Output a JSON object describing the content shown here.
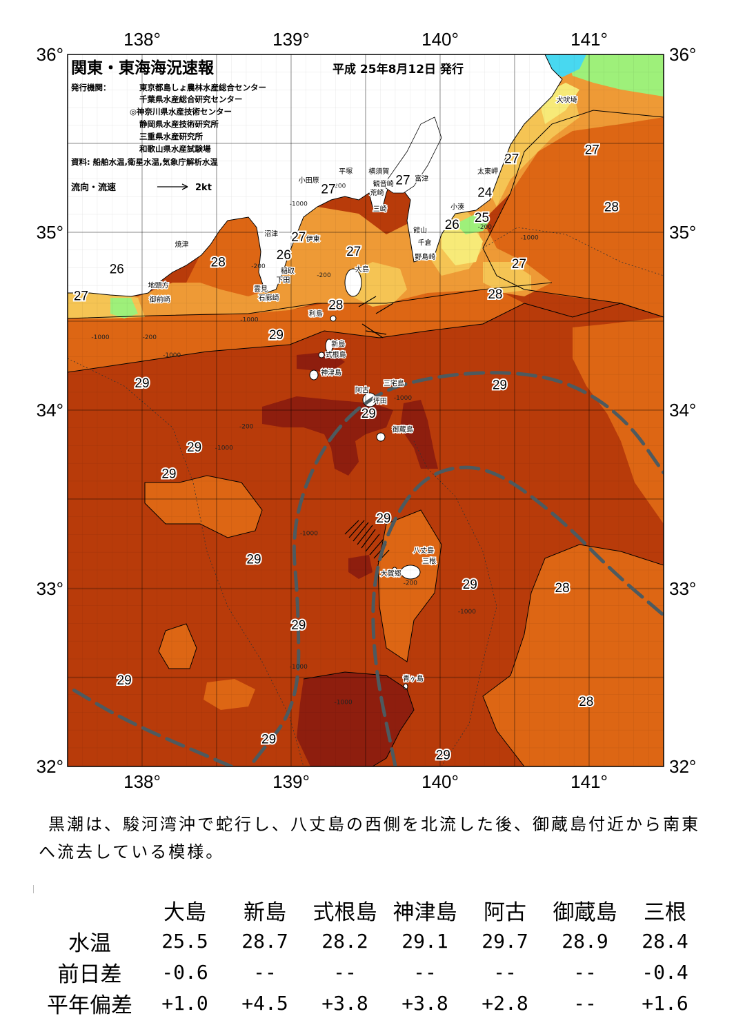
{
  "header": {
    "title": "関東・東海海況速報",
    "date": "平成 25年8月12日 発行",
    "publisher_label": "発行機関：",
    "publishers": [
      "東京都島しょ農林水産総合センター",
      "千葉県水産総合研究センター",
      "◎神奈川県水産技術センター",
      "静岡県水産技術研究所",
      "三重県水産研究所",
      "和歌山県水産試験場"
    ],
    "source": "資料: 船舶水温,衛星水温,気象庁解析水温",
    "legend_current": "流向・流速",
    "legend_speed": "2kt"
  },
  "axes": {
    "longitude_labels": [
      "138°",
      "139°",
      "140°",
      "141°"
    ],
    "latitude_labels": [
      "36°",
      "35°",
      "34°",
      "33°",
      "32°"
    ],
    "lon_range": [
      137.5,
      141.5
    ],
    "lat_range": [
      32,
      36
    ]
  },
  "isotherm_labels": [
    {
      "text": "26",
      "lon": 137.83,
      "lat": 34.77
    },
    {
      "text": "27",
      "lon": 137.59,
      "lat": 34.62
    },
    {
      "text": "28",
      "lon": 138.51,
      "lat": 34.81
    },
    {
      "text": "26",
      "lon": 138.95,
      "lat": 34.85
    },
    {
      "text": "27",
      "lon": 139.05,
      "lat": 34.95
    },
    {
      "text": "27",
      "lon": 139.25,
      "lat": 35.22
    },
    {
      "text": "27",
      "lon": 139.42,
      "lat": 34.87
    },
    {
      "text": "27",
      "lon": 139.75,
      "lat": 35.27
    },
    {
      "text": "28",
      "lon": 139.3,
      "lat": 34.57
    },
    {
      "text": "29",
      "lon": 138.9,
      "lat": 34.4
    },
    {
      "text": "24",
      "lon": 140.3,
      "lat": 35.2
    },
    {
      "text": "26",
      "lon": 140.08,
      "lat": 35.02
    },
    {
      "text": "25",
      "lon": 140.28,
      "lat": 35.06
    },
    {
      "text": "27",
      "lon": 140.48,
      "lat": 35.39
    },
    {
      "text": "27",
      "lon": 141.02,
      "lat": 35.44
    },
    {
      "text": "28",
      "lon": 141.15,
      "lat": 35.12
    },
    {
      "text": "27",
      "lon": 140.53,
      "lat": 34.8
    },
    {
      "text": "28",
      "lon": 140.37,
      "lat": 34.63
    },
    {
      "text": "29",
      "lon": 140.4,
      "lat": 34.12
    },
    {
      "text": "29",
      "lon": 138.0,
      "lat": 34.13
    },
    {
      "text": "29",
      "lon": 138.35,
      "lat": 33.77
    },
    {
      "text": "29",
      "lon": 138.18,
      "lat": 33.62
    },
    {
      "text": "29",
      "lon": 139.52,
      "lat": 33.96
    },
    {
      "text": "29",
      "lon": 139.62,
      "lat": 33.37
    },
    {
      "text": "29",
      "lon": 138.75,
      "lat": 33.14
    },
    {
      "text": "29",
      "lon": 140.2,
      "lat": 33.0
    },
    {
      "text": "28",
      "lon": 140.82,
      "lat": 32.98
    },
    {
      "text": "29",
      "lon": 139.05,
      "lat": 32.77
    },
    {
      "text": "29",
      "lon": 137.88,
      "lat": 32.46
    },
    {
      "text": "28",
      "lon": 140.98,
      "lat": 32.34
    },
    {
      "text": "29",
      "lon": 138.85,
      "lat": 32.13
    },
    {
      "text": "29",
      "lon": 140.02,
      "lat": 32.04
    }
  ],
  "place_names": [
    {
      "text": "犬吠埼",
      "lon": 140.78,
      "lat": 35.73
    },
    {
      "text": "太東岬",
      "lon": 140.25,
      "lat": 35.33
    },
    {
      "text": "小湊",
      "lon": 140.07,
      "lat": 35.13
    },
    {
      "text": "館山",
      "lon": 139.82,
      "lat": 35.0
    },
    {
      "text": "千倉",
      "lon": 139.85,
      "lat": 34.93
    },
    {
      "text": "野島崎",
      "lon": 139.83,
      "lat": 34.85
    },
    {
      "text": "富津",
      "lon": 139.83,
      "lat": 35.29
    },
    {
      "text": "横須賀",
      "lon": 139.52,
      "lat": 35.33
    },
    {
      "text": "観音崎",
      "lon": 139.55,
      "lat": 35.26
    },
    {
      "text": "荒崎",
      "lon": 139.53,
      "lat": 35.21
    },
    {
      "text": "三崎",
      "lon": 139.55,
      "lat": 35.12
    },
    {
      "text": "平塚",
      "lon": 139.32,
      "lat": 35.33
    },
    {
      "text": "小田原",
      "lon": 139.05,
      "lat": 35.28
    },
    {
      "text": "沼津",
      "lon": 138.82,
      "lat": 34.98
    },
    {
      "text": "伊東",
      "lon": 139.1,
      "lat": 34.95
    },
    {
      "text": "稲取",
      "lon": 138.93,
      "lat": 34.77
    },
    {
      "text": "下田",
      "lon": 138.9,
      "lat": 34.72
    },
    {
      "text": "雲見",
      "lon": 138.75,
      "lat": 34.67
    },
    {
      "text": "石廊崎",
      "lon": 138.78,
      "lat": 34.62
    },
    {
      "text": "焼津",
      "lon": 138.22,
      "lat": 34.92
    },
    {
      "text": "地頭方",
      "lon": 138.04,
      "lat": 34.69
    },
    {
      "text": "御前崎",
      "lon": 138.05,
      "lat": 34.61
    },
    {
      "text": "大島",
      "lon": 139.43,
      "lat": 34.78
    },
    {
      "text": "利島",
      "lon": 139.12,
      "lat": 34.53
    },
    {
      "text": "新島",
      "lon": 139.27,
      "lat": 34.36
    },
    {
      "text": "式根島",
      "lon": 139.23,
      "lat": 34.3
    },
    {
      "text": "神津島",
      "lon": 139.2,
      "lat": 34.2
    },
    {
      "text": "三宅島",
      "lon": 139.62,
      "lat": 34.14
    },
    {
      "text": "阿古",
      "lon": 139.43,
      "lat": 34.1
    },
    {
      "text": "坪田",
      "lon": 139.55,
      "lat": 34.04
    },
    {
      "text": "御蔵島",
      "lon": 139.68,
      "lat": 33.88
    },
    {
      "text": "八丈島",
      "lon": 139.82,
      "lat": 33.2
    },
    {
      "text": "三根",
      "lon": 139.88,
      "lat": 33.14
    },
    {
      "text": "大賀郷",
      "lon": 139.6,
      "lat": 33.07
    },
    {
      "text": "青ヶ島",
      "lon": 139.75,
      "lat": 32.48
    }
  ],
  "depth_labels": [
    {
      "text": "-200",
      "lon": 139.32,
      "lat": 35.25
    },
    {
      "text": "-1000",
      "lon": 139.05,
      "lat": 35.15
    },
    {
      "text": "-200",
      "lon": 138.78,
      "lat": 34.8
    },
    {
      "text": "-1000",
      "lon": 138.72,
      "lat": 34.5
    },
    {
      "text": "-1000",
      "lon": 138.2,
      "lat": 34.3
    },
    {
      "text": "-200",
      "lon": 138.05,
      "lat": 34.4
    },
    {
      "text": "-1000",
      "lon": 137.72,
      "lat": 34.4
    },
    {
      "text": "-200",
      "lon": 139.22,
      "lat": 34.75
    },
    {
      "text": "-200",
      "lon": 138.7,
      "lat": 33.9
    },
    {
      "text": "-1000",
      "lon": 138.55,
      "lat": 33.78
    },
    {
      "text": "-1000",
      "lon": 139.75,
      "lat": 34.06
    },
    {
      "text": "-1000",
      "lon": 140.6,
      "lat": 34.96
    },
    {
      "text": "-200",
      "lon": 140.3,
      "lat": 35.02
    },
    {
      "text": "-1000",
      "lon": 139.12,
      "lat": 33.3
    },
    {
      "text": "-1000",
      "lon": 140.18,
      "lat": 32.86
    },
    {
      "text": "-1000",
      "lon": 139.05,
      "lat": 32.55
    },
    {
      "text": "-1000",
      "lon": 139.35,
      "lat": 32.35
    },
    {
      "text": "-200",
      "lon": 139.8,
      "lat": 33.02
    }
  ],
  "kuroshio_paths": [
    [
      [
        138.6,
        32.0
      ],
      [
        137.9,
        32.25
      ],
      [
        137.5,
        32.45
      ]
    ],
    [
      [
        139.7,
        32.0
      ],
      [
        139.55,
        32.6
      ],
      [
        139.55,
        33.1
      ],
      [
        139.75,
        33.5
      ],
      [
        140.0,
        33.68
      ],
      [
        140.35,
        33.68
      ],
      [
        140.8,
        33.4
      ],
      [
        141.15,
        33.1
      ],
      [
        141.5,
        32.85
      ]
    ],
    [
      [
        138.75,
        32.03
      ],
      [
        139.05,
        32.35
      ],
      [
        139.05,
        32.9
      ],
      [
        139.0,
        33.35
      ],
      [
        139.2,
        33.8
      ],
      [
        139.55,
        34.1
      ],
      [
        140.0,
        34.2
      ],
      [
        140.5,
        34.22
      ],
      [
        140.9,
        34.15
      ],
      [
        141.25,
        33.95
      ],
      [
        141.5,
        33.65
      ]
    ]
  ],
  "summary": "黒潮は、駿河湾沖で蛇行し、八丈島の西側を北流した後、御蔵島付近から南東へ流去している模様。",
  "table": {
    "columns": [
      "大島",
      "新島",
      "式根島",
      "神津島",
      "阿古",
      "御蔵島",
      "三根"
    ],
    "rows": [
      {
        "label": "水温",
        "values": [
          "25.5",
          "28.7",
          "28.2",
          "29.1",
          "29.7",
          "28.9",
          "28.4"
        ]
      },
      {
        "label": "前日差",
        "values": [
          "-0.6",
          "--",
          "--",
          "--",
          "--",
          "--",
          "-0.4"
        ]
      },
      {
        "label": "平年偏差",
        "values": [
          "+1.0",
          "+4.5",
          "+3.8",
          "+3.8",
          "+2.8",
          "--",
          "+1.6"
        ]
      }
    ]
  },
  "colors": {
    "sst_29_plus": "#8e1e0e",
    "sst_29": "#b83b0a",
    "sst_28": "#dd6614",
    "sst_27": "#ee9a36",
    "sst_26": "#f5c454",
    "sst_25": "#f7ea78",
    "sst_24": "#9ef07a",
    "sst_23": "#48d8f0",
    "land": "#ffffff",
    "kuroshio_axis": "#4d5a5f"
  }
}
